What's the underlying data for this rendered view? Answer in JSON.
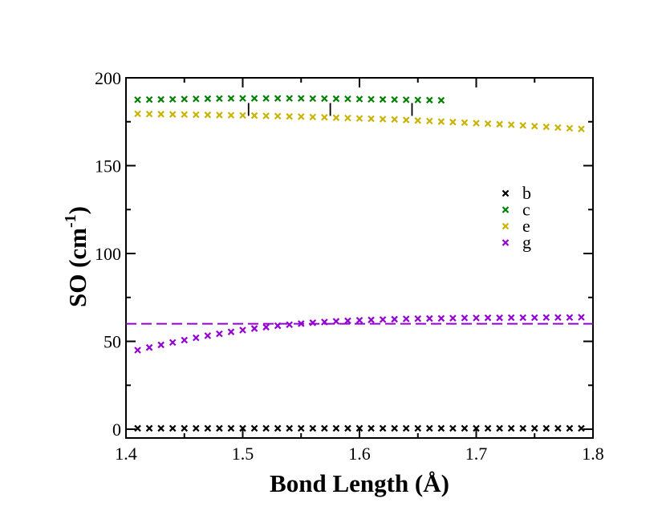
{
  "chart_data": {
    "type": "scatter",
    "title": "",
    "xlabel": "Bond Length (Å)",
    "ylabel": {
      "main": "SO (cm",
      "superscript": "-1",
      "close": ")"
    },
    "xlim": [
      1.4,
      1.8
    ],
    "ylim": [
      -5,
      200
    ],
    "xticks": [
      {
        "value": 1.4,
        "label": "1.4"
      },
      {
        "value": 1.5,
        "label": "1.5"
      },
      {
        "value": 1.6,
        "label": "1.6"
      },
      {
        "value": 1.7,
        "label": "1.7"
      },
      {
        "value": 1.8,
        "label": "1.8"
      }
    ],
    "yticks": [
      {
        "value": 0,
        "label": "0"
      },
      {
        "value": 50,
        "label": "50"
      },
      {
        "value": 100,
        "label": "100"
      },
      {
        "value": 150,
        "label": "150"
      },
      {
        "value": 200,
        "label": "200"
      }
    ],
    "x_minor_step": 0.05,
    "y_minor_step": 25,
    "grid": false,
    "legend_position": "right-middle",
    "series": [
      {
        "name": "b",
        "color": "#000000",
        "marker": "x",
        "x": [
          1.41,
          1.42,
          1.43,
          1.44,
          1.45,
          1.46,
          1.47,
          1.48,
          1.49,
          1.5,
          1.51,
          1.52,
          1.53,
          1.54,
          1.55,
          1.56,
          1.57,
          1.58,
          1.59,
          1.6,
          1.61,
          1.62,
          1.63,
          1.64,
          1.65,
          1.66,
          1.67,
          1.68,
          1.69,
          1.7,
          1.71,
          1.72,
          1.73,
          1.74,
          1.75,
          1.76,
          1.77,
          1.78,
          1.79
        ],
        "y": [
          0.5,
          0.5,
          0.5,
          0.5,
          0.5,
          0.5,
          0.5,
          0.5,
          0.5,
          0.5,
          0.5,
          0.5,
          0.5,
          0.5,
          0.5,
          0.5,
          0.5,
          0.5,
          0.5,
          0.5,
          0.5,
          0.5,
          0.5,
          0.5,
          0.5,
          0.5,
          0.5,
          0.5,
          0.5,
          0.5,
          0.5,
          0.5,
          0.5,
          0.5,
          0.5,
          0.5,
          0.5,
          0.5,
          0.5
        ]
      },
      {
        "name": "c",
        "color": "#008000",
        "marker": "x",
        "x": [
          1.41,
          1.42,
          1.43,
          1.44,
          1.45,
          1.46,
          1.47,
          1.48,
          1.49,
          1.5,
          1.51,
          1.52,
          1.53,
          1.54,
          1.55,
          1.56,
          1.57,
          1.58,
          1.59,
          1.6,
          1.61,
          1.62,
          1.63,
          1.64,
          1.65,
          1.66,
          1.67
        ],
        "y": [
          187.5,
          187.6,
          187.7,
          187.8,
          187.9,
          188.0,
          188.1,
          188.2,
          188.3,
          188.3,
          188.3,
          188.3,
          188.3,
          188.3,
          188.3,
          188.2,
          188.2,
          188.1,
          188.0,
          187.9,
          187.8,
          187.7,
          187.6,
          187.5,
          187.4,
          187.3,
          187.2
        ]
      },
      {
        "name": "e",
        "color": "#c8b400",
        "marker": "x",
        "x": [
          1.41,
          1.42,
          1.43,
          1.44,
          1.45,
          1.46,
          1.47,
          1.48,
          1.49,
          1.5,
          1.51,
          1.52,
          1.53,
          1.54,
          1.55,
          1.56,
          1.57,
          1.58,
          1.59,
          1.6,
          1.61,
          1.62,
          1.63,
          1.64,
          1.65,
          1.66,
          1.67,
          1.68,
          1.69,
          1.7,
          1.71,
          1.72,
          1.73,
          1.74,
          1.75,
          1.76,
          1.77,
          1.78,
          1.79
        ],
        "y": [
          179.5,
          179.4,
          179.3,
          179.2,
          179.1,
          179.0,
          178.9,
          178.8,
          178.7,
          178.6,
          178.5,
          178.3,
          178.2,
          178.0,
          177.9,
          177.7,
          177.5,
          177.3,
          177.1,
          176.9,
          176.7,
          176.5,
          176.3,
          176.0,
          175.7,
          175.4,
          175.1,
          174.8,
          174.5,
          174.2,
          173.9,
          173.6,
          173.3,
          172.9,
          172.5,
          172.1,
          171.7,
          171.3,
          170.9
        ]
      },
      {
        "name": "g",
        "color": "#9400d3",
        "marker": "x",
        "x": [
          1.41,
          1.42,
          1.43,
          1.44,
          1.45,
          1.46,
          1.47,
          1.48,
          1.49,
          1.5,
          1.51,
          1.52,
          1.53,
          1.54,
          1.55,
          1.56,
          1.57,
          1.58,
          1.59,
          1.6,
          1.61,
          1.62,
          1.63,
          1.64,
          1.65,
          1.66,
          1.67,
          1.68,
          1.69,
          1.7,
          1.71,
          1.72,
          1.73,
          1.74,
          1.75,
          1.76,
          1.77,
          1.78,
          1.79
        ],
        "y": [
          45.0,
          46.5,
          48.0,
          49.4,
          50.7,
          52.0,
          53.2,
          54.3,
          55.4,
          56.4,
          57.3,
          58.1,
          58.9,
          59.5,
          60.1,
          60.6,
          61.0,
          61.4,
          61.7,
          62.0,
          62.2,
          62.4,
          62.6,
          62.8,
          62.9,
          63.0,
          63.1,
          63.2,
          63.3,
          63.3,
          63.4,
          63.4,
          63.5,
          63.5,
          63.5,
          63.6,
          63.6,
          63.6,
          63.7
        ]
      }
    ],
    "reference_line": {
      "y": 60,
      "color": "#9400d3",
      "style": "dashed"
    },
    "error_markers": [
      {
        "x": 1.505,
        "y": 182
      },
      {
        "x": 1.575,
        "y": 182
      },
      {
        "x": 1.645,
        "y": 182
      }
    ]
  }
}
